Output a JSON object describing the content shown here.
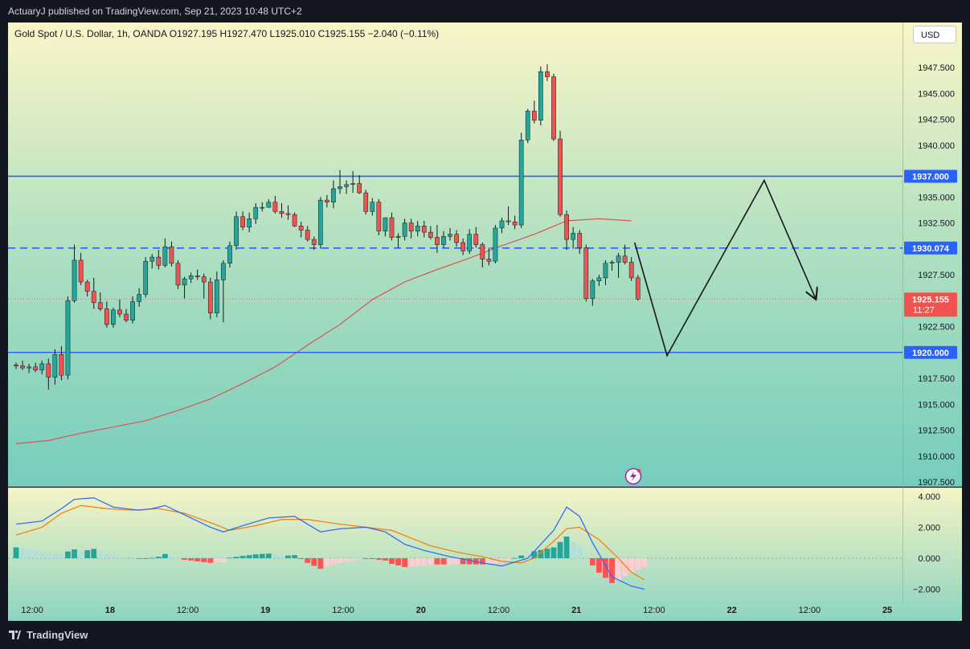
{
  "header": {
    "publisher": "ActuaryJ published on TradingView.com, Sep 21, 2023 10:48 UTC+2"
  },
  "legend": {
    "text": "Gold Spot / U.S. Dollar, 1h, OANDA  O1927.195  H1927.470  L1925.010  C1925.155  −2.040 (−0.11%)"
  },
  "currency_button": "USD",
  "footer": {
    "brand": "TradingView"
  },
  "colors": {
    "up": "#26a69a",
    "down": "#ef5350",
    "level_line": "#2962ff",
    "ma_line": "#e04848",
    "macd_line": "#2962ff",
    "signal_line": "#f57c00",
    "hist_up_strong": "#26a69a",
    "hist_up_weak": "#b2dfdb",
    "hist_down_strong": "#ff5252",
    "hist_down_weak": "#ffcdd2"
  },
  "icons": {
    "alert_icon": "lightning-bolt-icon",
    "brand_icon": "tradingview-logo-icon"
  },
  "chart_data": [
    {
      "type": "candlestick",
      "symbol": "Gold Spot / U.S. Dollar",
      "timeframe": "1h",
      "ylim": [
        1907.5,
        1950.5
      ],
      "y_ticks": [
        "1947.500",
        "1945.000",
        "1942.500",
        "1940.000",
        "1937.500",
        "1935.000",
        "1932.500",
        "1930.000",
        "1927.500",
        "1925.000",
        "1922.500",
        "1920.000",
        "1917.500",
        "1915.000",
        "1912.500",
        "1910.000",
        "1907.500"
      ],
      "x_ticks": [
        {
          "label": "12:00",
          "idx": 2.5
        },
        {
          "label": "18",
          "idx": 14.5
        },
        {
          "label": "12:00",
          "idx": 26.5
        },
        {
          "label": "19",
          "idx": 38.5
        },
        {
          "label": "12:00",
          "idx": 50.5
        },
        {
          "label": "20",
          "idx": 62.5
        },
        {
          "label": "12:00",
          "idx": 74.5
        },
        {
          "label": "21",
          "idx": 86.5
        },
        {
          "label": "12:00",
          "idx": 98.5
        },
        {
          "label": "22",
          "idx": 110.5
        },
        {
          "label": "12:00",
          "idx": 122.5
        },
        {
          "label": "25",
          "idx": 134.5
        }
      ],
      "candles": [
        [
          1918.8,
          1919.0,
          1918.4,
          1918.7
        ],
        [
          1918.7,
          1919.2,
          1918.3,
          1918.5
        ],
        [
          1918.5,
          1918.9,
          1918.0,
          1918.6
        ],
        [
          1918.6,
          1919.0,
          1918.1,
          1918.3
        ],
        [
          1918.3,
          1919.2,
          1917.9,
          1918.9
        ],
        [
          1918.9,
          1919.4,
          1916.4,
          1917.6
        ],
        [
          1917.6,
          1920.3,
          1916.9,
          1919.8
        ],
        [
          1919.8,
          1920.6,
          1917.3,
          1917.8
        ],
        [
          1917.8,
          1925.4,
          1917.4,
          1925.0
        ],
        [
          1925.0,
          1930.4,
          1924.8,
          1928.9
        ],
        [
          1928.9,
          1929.6,
          1926.5,
          1926.8
        ],
        [
          1926.8,
          1927.0,
          1925.4,
          1925.9
        ],
        [
          1925.9,
          1927.2,
          1924.2,
          1924.8
        ],
        [
          1924.8,
          1925.8,
          1924.0,
          1924.2
        ],
        [
          1924.2,
          1924.9,
          1922.4,
          1922.7
        ],
        [
          1922.7,
          1924.3,
          1922.4,
          1924.1
        ],
        [
          1924.1,
          1925.1,
          1923.4,
          1923.7
        ],
        [
          1923.7,
          1924.2,
          1922.9,
          1923.1
        ],
        [
          1923.1,
          1925.4,
          1922.8,
          1924.9
        ],
        [
          1924.9,
          1926.2,
          1924.4,
          1925.6
        ],
        [
          1925.6,
          1929.2,
          1925.3,
          1928.8
        ],
        [
          1928.8,
          1929.5,
          1928.1,
          1929.2
        ],
        [
          1929.2,
          1929.9,
          1928.0,
          1928.4
        ],
        [
          1928.4,
          1931.0,
          1928.2,
          1930.2
        ],
        [
          1930.2,
          1930.7,
          1928.3,
          1928.6
        ],
        [
          1928.6,
          1928.9,
          1926.1,
          1926.5
        ],
        [
          1926.5,
          1927.3,
          1925.2,
          1927.1
        ],
        [
          1927.1,
          1927.7,
          1926.7,
          1927.4
        ],
        [
          1927.4,
          1928.0,
          1927.0,
          1927.3
        ],
        [
          1927.3,
          1927.6,
          1925.2,
          1926.8
        ],
        [
          1926.8,
          1927.2,
          1923.2,
          1923.8
        ],
        [
          1923.8,
          1927.8,
          1923.4,
          1927.0
        ],
        [
          1927.0,
          1928.9,
          1922.9,
          1928.6
        ],
        [
          1928.6,
          1930.7,
          1928.2,
          1930.3
        ],
        [
          1930.3,
          1933.6,
          1929.9,
          1933.1
        ],
        [
          1933.1,
          1933.6,
          1931.8,
          1932.1
        ],
        [
          1932.1,
          1933.5,
          1931.6,
          1932.9
        ],
        [
          1932.9,
          1934.4,
          1932.4,
          1934.0
        ],
        [
          1934.0,
          1934.5,
          1933.6,
          1934.0
        ],
        [
          1934.0,
          1934.8,
          1934.0,
          1934.5
        ],
        [
          1934.5,
          1935.1,
          1933.4,
          1933.6
        ],
        [
          1933.6,
          1934.4,
          1933.0,
          1933.4
        ],
        [
          1933.4,
          1934.2,
          1932.8,
          1933.3
        ],
        [
          1933.3,
          1933.5,
          1932.1,
          1932.2
        ],
        [
          1932.2,
          1932.6,
          1931.1,
          1931.8
        ],
        [
          1931.8,
          1932.2,
          1930.7,
          1930.9
        ],
        [
          1930.9,
          1931.2,
          1929.9,
          1930.4
        ],
        [
          1930.4,
          1935.0,
          1930.0,
          1934.7
        ],
        [
          1934.7,
          1935.2,
          1934.0,
          1934.5
        ],
        [
          1934.5,
          1936.6,
          1933.9,
          1935.8
        ],
        [
          1935.8,
          1937.6,
          1935.3,
          1936.0
        ],
        [
          1936.0,
          1936.6,
          1935.3,
          1936.2
        ],
        [
          1936.2,
          1937.5,
          1935.4,
          1936.3
        ],
        [
          1936.3,
          1937.1,
          1935.3,
          1935.4
        ],
        [
          1935.4,
          1935.7,
          1933.3,
          1933.6
        ],
        [
          1933.6,
          1934.9,
          1933.2,
          1934.5
        ],
        [
          1934.5,
          1934.8,
          1931.3,
          1931.7
        ],
        [
          1931.7,
          1933.0,
          1931.2,
          1933.0
        ],
        [
          1933.0,
          1933.5,
          1930.8,
          1931.1
        ],
        [
          1931.1,
          1931.5,
          1930.1,
          1931.2
        ],
        [
          1931.2,
          1932.9,
          1930.8,
          1932.5
        ],
        [
          1932.5,
          1932.9,
          1931.0,
          1931.7
        ],
        [
          1931.7,
          1932.7,
          1931.2,
          1932.2
        ],
        [
          1932.2,
          1932.7,
          1931.1,
          1931.6
        ],
        [
          1931.6,
          1932.2,
          1930.9,
          1931.1
        ],
        [
          1931.1,
          1932.3,
          1929.6,
          1930.4
        ],
        [
          1930.4,
          1931.7,
          1930.1,
          1931.2
        ],
        [
          1931.2,
          1932.0,
          1930.8,
          1931.4
        ],
        [
          1931.4,
          1931.8,
          1930.2,
          1930.6
        ],
        [
          1930.6,
          1931.0,
          1929.4,
          1929.8
        ],
        [
          1929.8,
          1931.9,
          1929.5,
          1931.4
        ],
        [
          1931.4,
          1932.1,
          1930.1,
          1930.4
        ],
        [
          1930.4,
          1930.6,
          1928.2,
          1929.0
        ],
        [
          1929.0,
          1930.1,
          1928.4,
          1928.8
        ],
        [
          1928.8,
          1932.3,
          1928.6,
          1932.0
        ],
        [
          1932.0,
          1933.0,
          1931.5,
          1932.7
        ],
        [
          1932.7,
          1934.1,
          1932.3,
          1932.6
        ],
        [
          1932.6,
          1933.2,
          1931.9,
          1932.3
        ],
        [
          1932.3,
          1941.2,
          1932.0,
          1940.5
        ],
        [
          1940.5,
          1943.5,
          1940.2,
          1943.3
        ],
        [
          1943.3,
          1944.3,
          1942.1,
          1942.4
        ],
        [
          1942.4,
          1947.6,
          1941.9,
          1947.1
        ],
        [
          1947.1,
          1947.8,
          1946.2,
          1946.6
        ],
        [
          1946.6,
          1946.9,
          1940.4,
          1940.6
        ],
        [
          1940.6,
          1941.4,
          1933.1,
          1933.3
        ],
        [
          1933.3,
          1933.7,
          1929.9,
          1930.9
        ],
        [
          1930.9,
          1932.1,
          1930.0,
          1931.5
        ],
        [
          1931.5,
          1931.8,
          1929.5,
          1930.1
        ],
        [
          1930.1,
          1930.4,
          1924.9,
          1925.2
        ],
        [
          1925.2,
          1927.1,
          1924.5,
          1926.9
        ],
        [
          1926.9,
          1927.5,
          1926.4,
          1927.2
        ],
        [
          1927.2,
          1928.9,
          1926.5,
          1928.6
        ],
        [
          1928.6,
          1928.9,
          1927.9,
          1928.7
        ],
        [
          1928.7,
          1929.6,
          1927.2,
          1929.3
        ],
        [
          1929.3,
          1930.4,
          1928.5,
          1928.7
        ],
        [
          1928.7,
          1929.2,
          1926.9,
          1927.2
        ],
        [
          1927.195,
          1927.47,
          1925.01,
          1925.155
        ]
      ],
      "moving_average": [
        [
          0,
          1911.2
        ],
        [
          5,
          1911.5
        ],
        [
          10,
          1912.2
        ],
        [
          15,
          1912.8
        ],
        [
          20,
          1913.4
        ],
        [
          25,
          1914.4
        ],
        [
          30,
          1915.5
        ],
        [
          35,
          1917.0
        ],
        [
          40,
          1918.6
        ],
        [
          45,
          1920.7
        ],
        [
          50,
          1922.7
        ],
        [
          55,
          1925.1
        ],
        [
          60,
          1926.8
        ],
        [
          65,
          1928.0
        ],
        [
          70,
          1929.1
        ],
        [
          75,
          1930.3
        ],
        [
          80,
          1931.4
        ],
        [
          85,
          1932.7
        ],
        [
          90,
          1932.9
        ],
        [
          95,
          1932.7
        ]
      ],
      "levels": [
        {
          "value": 1937.0,
          "label": "1937.000",
          "style": "solid"
        },
        {
          "value": 1930.074,
          "label": "1930.074",
          "style": "dashed"
        },
        {
          "value": 1920.0,
          "label": "1920.000",
          "style": "solid"
        }
      ],
      "last_price": {
        "value": 1925.155,
        "label": "1925.155",
        "countdown": "11:27"
      },
      "projection_path": [
        [
          95.5,
          1930.6
        ],
        [
          100.5,
          1919.7
        ],
        [
          115.5,
          1936.6
        ],
        [
          123.5,
          1925.1
        ]
      ]
    },
    {
      "type": "macd",
      "ylim": [
        -3.2,
        4.6
      ],
      "y_ticks": [
        "4.000",
        "2.000",
        "0.000",
        "−2.000"
      ],
      "macd": [
        [
          0,
          2.2
        ],
        [
          4,
          2.4
        ],
        [
          7,
          3.2
        ],
        [
          9,
          3.8
        ],
        [
          12,
          3.9
        ],
        [
          15,
          3.3
        ],
        [
          19,
          3.1
        ],
        [
          21,
          3.2
        ],
        [
          23,
          3.4
        ],
        [
          26,
          2.8
        ],
        [
          30,
          2.0
        ],
        [
          32,
          1.7
        ],
        [
          35,
          2.1
        ],
        [
          39,
          2.6
        ],
        [
          43,
          2.7
        ],
        [
          47,
          1.7
        ],
        [
          50,
          1.9
        ],
        [
          54,
          2.0
        ],
        [
          57,
          1.7
        ],
        [
          60,
          0.9
        ],
        [
          63,
          0.5
        ],
        [
          67,
          0.1
        ],
        [
          72,
          -0.3
        ],
        [
          75,
          -0.5
        ],
        [
          79,
          0.0
        ],
        [
          83,
          1.8
        ],
        [
          85,
          3.3
        ],
        [
          87,
          2.7
        ],
        [
          89,
          1.0
        ],
        [
          92,
          -1.2
        ],
        [
          95,
          -1.8
        ],
        [
          97,
          -2.0
        ]
      ],
      "signal": [
        [
          0,
          1.5
        ],
        [
          4,
          2.0
        ],
        [
          7,
          2.9
        ],
        [
          10,
          3.4
        ],
        [
          14,
          3.2
        ],
        [
          18,
          3.1
        ],
        [
          22,
          3.2
        ],
        [
          26,
          2.9
        ],
        [
          30,
          2.3
        ],
        [
          33,
          1.8
        ],
        [
          37,
          2.1
        ],
        [
          41,
          2.5
        ],
        [
          45,
          2.5
        ],
        [
          50,
          2.2
        ],
        [
          54,
          2.0
        ],
        [
          58,
          1.8
        ],
        [
          61,
          1.3
        ],
        [
          64,
          0.8
        ],
        [
          68,
          0.4
        ],
        [
          72,
          0.1
        ],
        [
          75,
          -0.2
        ],
        [
          78,
          -0.3
        ],
        [
          80,
          0.0
        ],
        [
          83,
          1.1
        ],
        [
          85,
          1.9
        ],
        [
          87,
          2.0
        ],
        [
          90,
          1.2
        ],
        [
          93,
          0.0
        ],
        [
          95,
          -0.9
        ],
        [
          97,
          -1.4
        ]
      ]
    }
  ]
}
